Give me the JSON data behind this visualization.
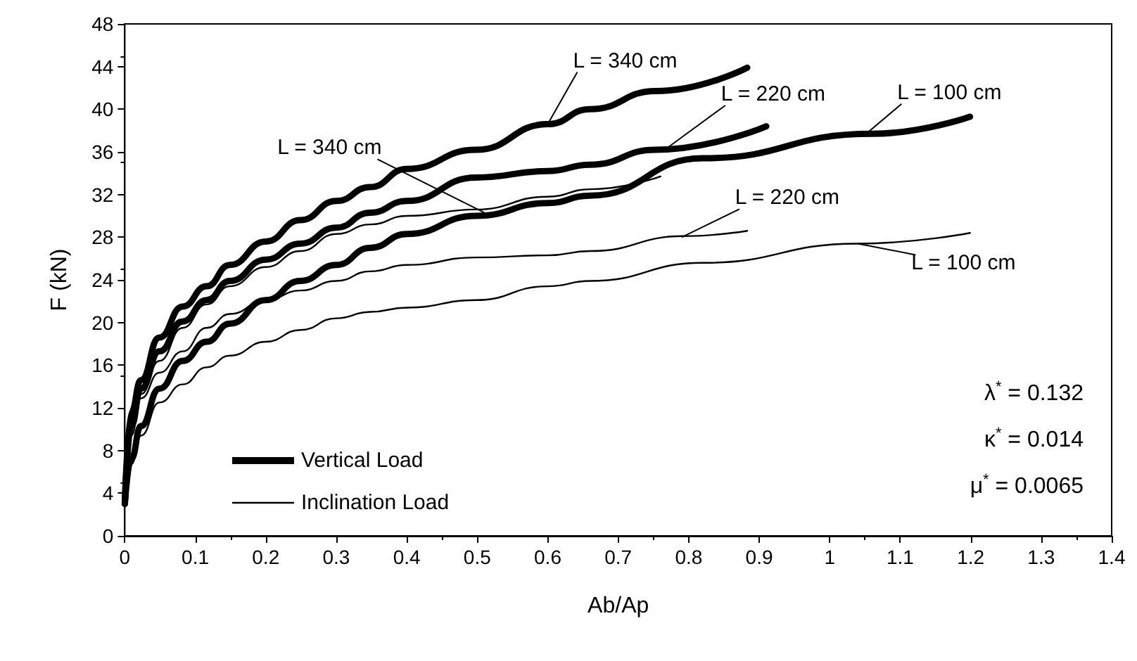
{
  "chart_data": {
    "type": "line",
    "xlabel": "Ab/Ap",
    "ylabel": "F (kN)",
    "xlim": [
      0,
      1.4
    ],
    "xticks": [
      0,
      0.1,
      0.2,
      0.3,
      0.4,
      0.5,
      0.6,
      0.7,
      0.8,
      0.9,
      1,
      1.1,
      1.2,
      1.3,
      1.4
    ],
    "ylim": [
      0,
      48
    ],
    "yticks": [
      0,
      4,
      8,
      12,
      16,
      20,
      24,
      28,
      32,
      36,
      40,
      44,
      48
    ],
    "grid": false,
    "legend": "bottom left",
    "marker": "none",
    "line_style": "solid",
    "series": [
      {
        "name": "Vertical Load",
        "color": "#000000",
        "x": [
          0,
          0.009,
          0.023,
          0.049,
          0.082,
          0.116,
          0.149,
          0.2,
          0.249,
          0.3,
          0.348,
          0.4,
          0.498,
          0.6,
          0.66,
          0.753,
          0.883
        ],
        "values": [
          3,
          11.6,
          14.6,
          18.6,
          21.5,
          23.4,
          25.4,
          27.6,
          29.6,
          31.4,
          32.7,
          34.4,
          36.2,
          38.6,
          40,
          41.7,
          43.9
        ]
      },
      {
        "color": "#000000",
        "x": [
          0,
          0.009,
          0.023,
          0.049,
          0.082,
          0.116,
          0.149,
          0.2,
          0.249,
          0.3,
          0.348,
          0.4,
          0.498,
          0.6,
          0.66,
          0.753,
          0.91
        ],
        "values": [
          3,
          10.3,
          13.8,
          17.3,
          20.1,
          22.1,
          23.9,
          25.9,
          27.4,
          28.9,
          30.3,
          31.4,
          33.6,
          34.2,
          34.8,
          36.2,
          38.4
        ]
      },
      {
        "color": "#000000",
        "x": [
          0,
          0.009,
          0.023,
          0.049,
          0.082,
          0.116,
          0.149,
          0.2,
          0.249,
          0.3,
          0.348,
          0.4,
          0.498,
          0.6,
          0.66,
          0.82,
          1.06,
          1.199
        ],
        "values": [
          3,
          7.2,
          10.3,
          13.8,
          16.4,
          18.2,
          19.9,
          22.1,
          23.9,
          25.4,
          27,
          28.3,
          30,
          31.2,
          31.9,
          35.4,
          37.7,
          39.3
        ]
      },
      {
        "name": "Inclination Load",
        "color": "#000000",
        "x": [
          0,
          0.009,
          0.023,
          0.049,
          0.082,
          0.116,
          0.149,
          0.2,
          0.249,
          0.3,
          0.348,
          0.4,
          0.498,
          0.6,
          0.66,
          0.76
        ],
        "values": [
          3,
          10.3,
          13.3,
          16.4,
          19.5,
          21.7,
          23.4,
          25.2,
          26.7,
          28.3,
          29.2,
          30,
          30.6,
          31.8,
          32.5,
          33.7
        ]
      },
      {
        "color": "#000000",
        "x": [
          0,
          0.009,
          0.023,
          0.049,
          0.082,
          0.116,
          0.149,
          0.2,
          0.249,
          0.3,
          0.348,
          0.4,
          0.498,
          0.6,
          0.66,
          0.793,
          0.883
        ],
        "values": [
          3,
          9.4,
          12.9,
          15.3,
          17.3,
          19.5,
          20.8,
          22.1,
          23,
          23.9,
          24.8,
          25.4,
          26.1,
          26.3,
          26.7,
          28.1,
          28.6
        ]
      },
      {
        "color": "#000000",
        "x": [
          0,
          0.009,
          0.023,
          0.049,
          0.082,
          0.116,
          0.149,
          0.2,
          0.249,
          0.3,
          0.348,
          0.4,
          0.498,
          0.6,
          0.66,
          0.82,
          1.04,
          1.199
        ],
        "values": [
          3,
          6.7,
          9.4,
          12.5,
          14.2,
          15.8,
          16.9,
          18.2,
          19.3,
          20.4,
          21,
          21.4,
          22.1,
          23.4,
          23.9,
          25.6,
          27.4,
          28.4
        ]
      }
    ],
    "annotations": [
      {
        "text": "L = 340 cm",
        "x": 0.6,
        "y": 38.6
      },
      {
        "text": "L = 220 cm",
        "x": 0.77,
        "y": 36.4
      },
      {
        "text": "L = 100 cm",
        "x": 1.05,
        "y": 37.6
      },
      {
        "text": "L = 340 cm",
        "x": 0.51,
        "y": 30.3
      },
      {
        "text": "L = 220 cm",
        "x": 0.79,
        "y": 28.0
      },
      {
        "text": "L = 100 cm",
        "x": 1.04,
        "y": 27.4
      },
      "λ$^{*}$ = 0.132",
      "κ$^{*}$ = 0.014",
      "μ$^{*}$ = 0.0065"
    ]
  }
}
